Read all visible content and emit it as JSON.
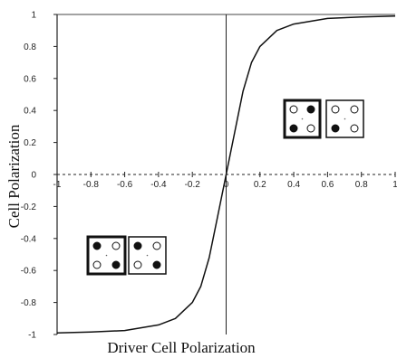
{
  "chart_data": {
    "type": "line",
    "title": "",
    "xlabel": "Driver Cell Polarization",
    "ylabel": "Cell Polarization",
    "xlim": [
      -1,
      1
    ],
    "ylim": [
      -1,
      1
    ],
    "grid": false,
    "legend": "none",
    "x_ticks": [
      "-1",
      "-0.8",
      "-0.6",
      "-0.4",
      "-0.2",
      "0",
      "0.2",
      "0.4",
      "0.6",
      "0.8",
      "1"
    ],
    "y_ticks": [
      "1",
      "0.8",
      "0.6",
      "0.4",
      "0.2",
      "0",
      "-0.2",
      "-0.4",
      "-0.6",
      "-0.8",
      "-1"
    ],
    "series": [
      {
        "x": [
          -1,
          -0.8,
          -0.6,
          -0.4,
          -0.3,
          -0.2,
          -0.15,
          -0.1,
          -0.05,
          0,
          0.05,
          0.1,
          0.15,
          0.2,
          0.3,
          0.4,
          0.6,
          0.8,
          1
        ],
        "y": [
          -0.99,
          -0.985,
          -0.975,
          -0.94,
          -0.9,
          -0.8,
          -0.7,
          -0.52,
          -0.26,
          0,
          0.26,
          0.52,
          0.7,
          0.8,
          0.9,
          0.94,
          0.975,
          0.985,
          0.99
        ]
      }
    ],
    "line_color": "#111111",
    "cell_diagrams": [
      {
        "name": "positive-driver-cell",
        "quadrant": "upper-right",
        "dots": [
          "open",
          "filled",
          "filled",
          "open"
        ]
      },
      {
        "name": "positive-output-cell",
        "quadrant": "upper-right",
        "dots": [
          "open",
          "open",
          "filled",
          "open"
        ]
      },
      {
        "name": "negative-driver-cell",
        "quadrant": "lower-left",
        "dots": [
          "filled",
          "open",
          "open",
          "filled"
        ]
      },
      {
        "name": "negative-output-cell",
        "quadrant": "lower-left",
        "dots": [
          "filled",
          "open",
          "open",
          "filled"
        ]
      }
    ]
  }
}
